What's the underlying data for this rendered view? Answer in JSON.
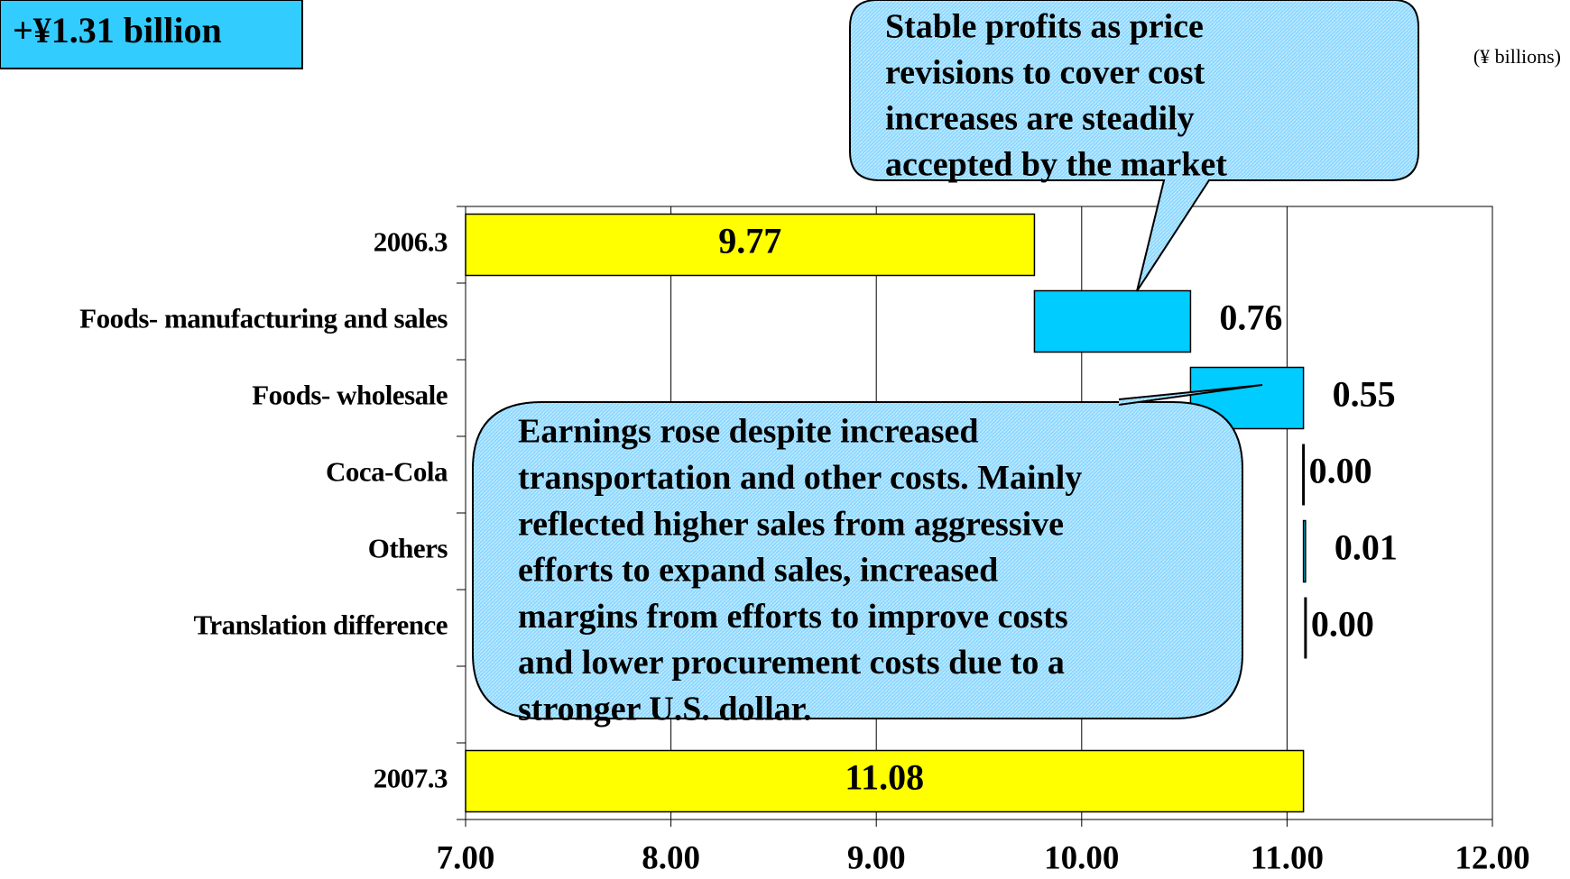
{
  "chart_data": {
    "type": "waterfall",
    "badge": "+¥1.31 billion",
    "unit_label": "(¥ billions)",
    "callouts": [
      [
        "Stable profits as price",
        "revisions to cover cost",
        "increases are steadily",
        "accepted by the market"
      ],
      [
        "Earnings rose despite increased",
        "transportation and other costs. Mainly",
        "reflected higher sales from aggressive",
        "efforts to expand sales, increased",
        "margins from efforts to improve costs",
        "and lower procurement costs due to a",
        "stronger U.S. dollar."
      ]
    ],
    "categories": [
      "2006.3",
      "Foods- manufacturing and sales",
      "Foods- wholesale",
      "Coca-Cola",
      "Others",
      "Translation difference",
      null,
      "2007.3"
    ],
    "values": [
      9.77,
      0.76,
      0.55,
      0.0,
      0.01,
      0.0,
      null,
      11.08
    ],
    "value_labels": [
      "9.77",
      "0.76",
      "0.55",
      "0.00",
      "0.01",
      "0.00",
      null,
      "11.08"
    ],
    "total_color": "#ffff00",
    "change_color": "#00ccff",
    "xlim": [
      7,
      12
    ],
    "xticks": [
      {
        "value": 7,
        "label": "7.00"
      },
      {
        "value": 8,
        "label": "8.00"
      },
      {
        "value": 9,
        "label": "9.00"
      },
      {
        "value": 10,
        "label": "10.00"
      },
      {
        "value": 11,
        "label": "11.00"
      },
      {
        "value": 12,
        "label": "12.00"
      }
    ],
    "grid": true
  }
}
